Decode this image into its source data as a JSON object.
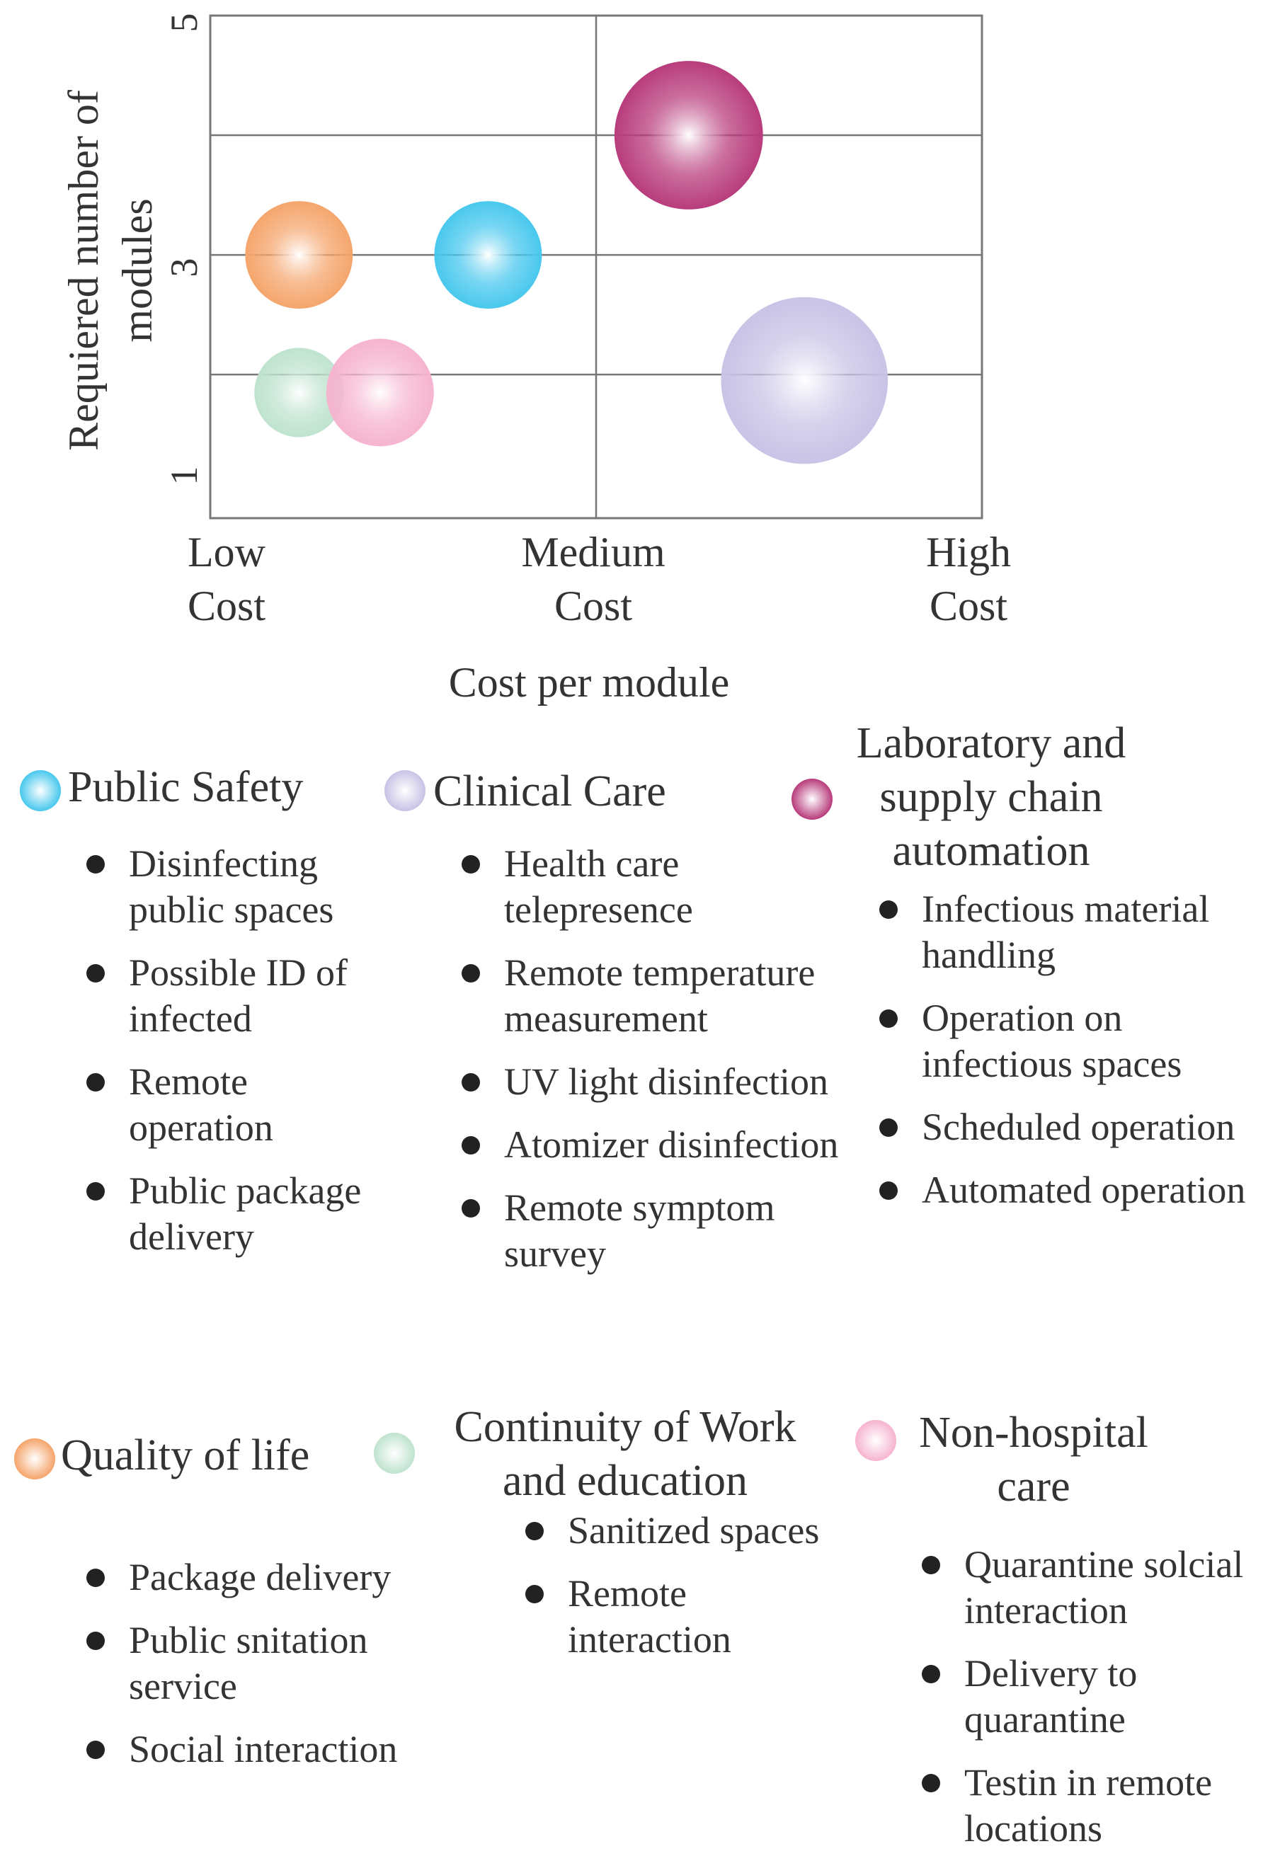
{
  "chart_data": {
    "type": "scatter",
    "ylabel": "Requiered number of modules",
    "xlabel": "Cost per module",
    "x_ticks": [
      "Low Cost",
      "Medium Cost",
      "High Cost"
    ],
    "y_ticks": [
      "1",
      "3",
      "5"
    ],
    "x_range": [
      "Low Cost",
      "High Cost"
    ],
    "ylim": [
      0.8,
      5
    ],
    "grid": true,
    "points": [
      {
        "category": "Public Safety",
        "cost": 0.72,
        "modules": 3.0,
        "size": 1.0,
        "color": "#49c8ee"
      },
      {
        "category": "Clinical Care",
        "cost": 1.54,
        "modules": 1.95,
        "size": 1.55,
        "color": "#c9c3e6"
      },
      {
        "category": "Laboratory and supply chain automation",
        "cost": 1.24,
        "modules": 4.0,
        "size": 1.38,
        "color": "#b83c7c"
      },
      {
        "category": "Quality of life",
        "cost": 0.23,
        "modules": 3.0,
        "size": 1.0,
        "color": "#f5a56c"
      },
      {
        "category": "Continuity of Work and education",
        "cost": 0.23,
        "modules": 1.85,
        "size": 0.83,
        "color": "#bfe3cf"
      },
      {
        "category": "Non-hospital care",
        "cost": 0.44,
        "modules": 1.85,
        "size": 1.0,
        "color": "#f6b4cf"
      }
    ]
  },
  "legend": [
    {
      "id": "public-safety",
      "title": "Public Safety",
      "color": "#49c8ee",
      "items": [
        "Disinfecting public spaces",
        "Possible ID of infected",
        "Remote operation",
        "Public package delivery"
      ]
    },
    {
      "id": "clinical-care",
      "title": "Clinical Care",
      "color": "#c9c3e6",
      "items": [
        "Health care telepresence",
        "Remote temperature measurement",
        "UV light disinfection",
        "Atomizer disinfection",
        "Remote symptom survey"
      ]
    },
    {
      "id": "laboratory",
      "title": "Laboratory and supply chain automation",
      "color": "#b83c7c",
      "items": [
        "Infectious material handling",
        "Operation on infectious spaces",
        "Scheduled operation",
        "Automated operation"
      ]
    },
    {
      "id": "quality-of-life",
      "title": "Quality of life",
      "color": "#f5a56c",
      "items": [
        "Package delivery",
        "Public snitation service",
        "Social interaction"
      ]
    },
    {
      "id": "continuity",
      "title": "Continuity of Work and education",
      "color": "#bfe3cf",
      "items": [
        "Sanitized spaces",
        "Remote interaction"
      ]
    },
    {
      "id": "non-hospital",
      "title": "Non-hospital care",
      "color": "#f6b4cf",
      "items": [
        "Quarantine solcial interaction",
        "Delivery to quarantine",
        "Testin in remote locations"
      ]
    }
  ]
}
